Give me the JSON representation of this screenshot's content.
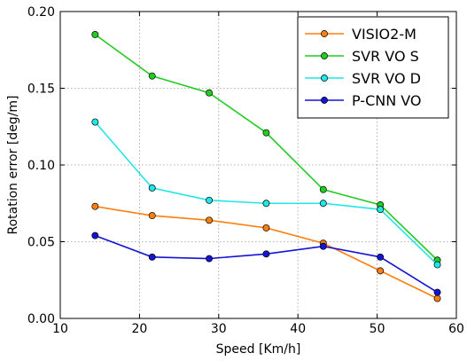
{
  "chart_data": {
    "type": "line",
    "xlabel": "Speed [Km/h]",
    "ylabel": "Rotation error [deg/m]",
    "xlim": [
      10,
      60
    ],
    "ylim": [
      0,
      0.2
    ],
    "x_ticks": [
      10,
      20,
      30,
      40,
      50,
      60
    ],
    "x_tick_labels": [
      "10",
      "20",
      "30",
      "40",
      "50",
      "60"
    ],
    "y_ticks": [
      0,
      0.05,
      0.1,
      0.15,
      0.2
    ],
    "y_tick_labels": [
      "0.00",
      "0.05",
      "0.10",
      "0.15",
      "0.20"
    ],
    "grid": true,
    "legend_position": "top-right",
    "x": [
      14.4,
      21.6,
      28.8,
      36.0,
      43.2,
      50.4,
      57.6
    ],
    "series": [
      {
        "name": "VISIO2-M",
        "color": "#ff7f0e",
        "values": [
          0.073,
          0.067,
          0.064,
          0.059,
          0.049,
          0.031,
          0.013
        ]
      },
      {
        "name": "SVR VO S",
        "color": "#22cc22",
        "values": [
          0.185,
          0.158,
          0.147,
          0.121,
          0.084,
          0.074,
          0.038
        ]
      },
      {
        "name": "SVR VO D",
        "color": "#22e6e6",
        "values": [
          0.128,
          0.085,
          0.077,
          0.075,
          0.075,
          0.071,
          0.035
        ]
      },
      {
        "name": "P-CNN VO",
        "color": "#1414d4",
        "values": [
          0.054,
          0.04,
          0.039,
          0.042,
          0.047,
          0.04,
          0.017
        ]
      }
    ]
  }
}
